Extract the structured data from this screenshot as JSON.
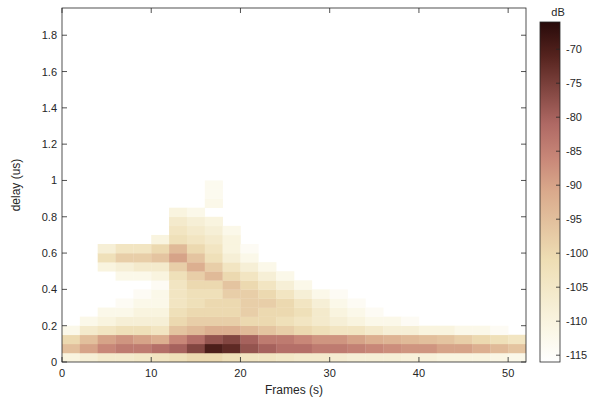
{
  "chart_data": {
    "type": "heatmap",
    "x_label": "Frames (s)",
    "y_label": "delay (us)",
    "xlim": [
      0,
      52
    ],
    "ylim": [
      0,
      1.95
    ],
    "xticks": [
      0,
      10,
      20,
      30,
      40,
      50
    ],
    "yticks": [
      0,
      0.2,
      0.4,
      0.6,
      0.8,
      1,
      1.2,
      1.4,
      1.6,
      1.8
    ],
    "x_edges": [
      0,
      2,
      4,
      6,
      8,
      10,
      12,
      14,
      16,
      18,
      20,
      22,
      24,
      26,
      28,
      30,
      32,
      34,
      36,
      38,
      40,
      42,
      44,
      46,
      48,
      50,
      52
    ],
    "y_edges": [
      0,
      0.05,
      0.1,
      0.15,
      0.2,
      0.25,
      0.3,
      0.35,
      0.4,
      0.45,
      0.5,
      0.55,
      0.6,
      0.65,
      0.7,
      0.75,
      0.8,
      0.85,
      0.9,
      0.95,
      1
    ],
    "z": [
      [
        -110,
        -108,
        -106,
        -106,
        -105,
        -104,
        -102,
        -100,
        -100,
        -102,
        -104,
        -104,
        -105,
        -106,
        -106,
        -107,
        -108,
        -108,
        -108,
        -109,
        -109,
        -110,
        -110,
        -110,
        -111,
        -112
      ],
      [
        -95,
        -90,
        -86,
        -84,
        -84,
        -82,
        -80,
        -76,
        -70,
        -72,
        -78,
        -80,
        -82,
        -82,
        -84,
        -84,
        -85,
        -86,
        -87,
        -88,
        -88,
        -90,
        -90,
        -92,
        -94,
        -96
      ],
      [
        -100,
        -95,
        -90,
        -88,
        -90,
        -92,
        -86,
        -82,
        -78,
        -76,
        -80,
        -84,
        -84,
        -86,
        -88,
        -88,
        -90,
        -92,
        -93,
        -94,
        -95,
        -96,
        -98,
        -100,
        -102,
        -104
      ],
      [
        -112,
        -106,
        -104,
        -102,
        -102,
        -104,
        -96,
        -94,
        -92,
        -92,
        -94,
        -96,
        -98,
        -100,
        -102,
        -104,
        -104,
        -106,
        -108,
        -108,
        -110,
        -110,
        -112,
        -112,
        -114,
        null
      ],
      [
        null,
        -112,
        -110,
        -108,
        -108,
        -108,
        -100,
        -98,
        -98,
        -98,
        -100,
        -100,
        -102,
        -104,
        -106,
        -108,
        -110,
        -112,
        -112,
        -114,
        null,
        null,
        null,
        null,
        null,
        null
      ],
      [
        null,
        null,
        -112,
        -112,
        -110,
        -110,
        -102,
        -100,
        -100,
        -100,
        -98,
        -100,
        -100,
        -102,
        -106,
        -110,
        -112,
        -114,
        null,
        null,
        null,
        null,
        null,
        null,
        null,
        null
      ],
      [
        null,
        null,
        null,
        -114,
        -112,
        -112,
        -104,
        -102,
        -100,
        -100,
        -98,
        -98,
        -100,
        -104,
        -108,
        -112,
        -114,
        null,
        null,
        null,
        null,
        null,
        null,
        null,
        null,
        null
      ],
      [
        null,
        null,
        null,
        null,
        -114,
        -112,
        -104,
        -102,
        -102,
        -98,
        -98,
        -100,
        -104,
        -108,
        -112,
        -114,
        null,
        null,
        null,
        null,
        null,
        null,
        null,
        null,
        null,
        null
      ],
      [
        null,
        null,
        null,
        null,
        null,
        -114,
        -104,
        -100,
        -100,
        -96,
        -100,
        -104,
        -108,
        -112,
        null,
        null,
        null,
        null,
        null,
        null,
        null,
        null,
        null,
        null,
        null,
        null
      ],
      [
        null,
        null,
        null,
        -112,
        -112,
        -110,
        -102,
        -98,
        -94,
        -100,
        -104,
        -108,
        -112,
        null,
        null,
        null,
        null,
        null,
        null,
        null,
        null,
        null,
        null,
        null,
        null,
        null
      ],
      [
        null,
        null,
        -110,
        -108,
        -106,
        -106,
        -98,
        -92,
        -98,
        -104,
        -108,
        -112,
        null,
        null,
        null,
        null,
        null,
        null,
        null,
        null,
        null,
        null,
        null,
        null,
        null,
        null
      ],
      [
        null,
        null,
        -102,
        -98,
        -98,
        -96,
        -90,
        -96,
        -102,
        -108,
        -112,
        null,
        null,
        null,
        null,
        null,
        null,
        null,
        null,
        null,
        null,
        null,
        null,
        null,
        null,
        null
      ],
      [
        null,
        null,
        -108,
        -104,
        -104,
        -100,
        -94,
        -100,
        -104,
        -110,
        -114,
        null,
        null,
        null,
        null,
        null,
        null,
        null,
        null,
        null,
        null,
        null,
        null,
        null,
        null,
        null
      ],
      [
        null,
        null,
        null,
        null,
        null,
        -110,
        -102,
        -104,
        -106,
        -110,
        null,
        null,
        null,
        null,
        null,
        null,
        null,
        null,
        null,
        null,
        null,
        null,
        null,
        null,
        null,
        null
      ],
      [
        null,
        null,
        null,
        null,
        null,
        null,
        -104,
        -106,
        -108,
        -112,
        null,
        null,
        null,
        null,
        null,
        null,
        null,
        null,
        null,
        null,
        null,
        null,
        null,
        null,
        null,
        null
      ],
      [
        null,
        null,
        null,
        null,
        null,
        null,
        -106,
        -108,
        -110,
        null,
        null,
        null,
        null,
        null,
        null,
        null,
        null,
        null,
        null,
        null,
        null,
        null,
        null,
        null,
        null,
        null
      ],
      [
        null,
        null,
        null,
        null,
        null,
        null,
        -110,
        -112,
        null,
        null,
        null,
        null,
        null,
        null,
        null,
        null,
        null,
        null,
        null,
        null,
        null,
        null,
        null,
        null,
        null,
        null
      ],
      [
        null,
        null,
        null,
        null,
        null,
        null,
        null,
        null,
        -112,
        null,
        null,
        null,
        null,
        null,
        null,
        null,
        null,
        null,
        null,
        null,
        null,
        null,
        null,
        null,
        null,
        null
      ],
      [
        null,
        null,
        null,
        null,
        null,
        null,
        null,
        null,
        -113,
        null,
        null,
        null,
        null,
        null,
        null,
        null,
        null,
        null,
        null,
        null,
        null,
        null,
        null,
        null,
        null,
        null
      ],
      [
        null,
        null,
        null,
        null,
        null,
        null,
        null,
        null,
        -113,
        null,
        null,
        null,
        null,
        null,
        null,
        null,
        null,
        null,
        null,
        null,
        null,
        null,
        null,
        null,
        null,
        null
      ]
    ],
    "colorbar": {
      "label": "dB",
      "range": [
        -116,
        -66
      ],
      "ticks": [
        -115,
        -110,
        -105,
        -100,
        -95,
        -90,
        -85,
        -80,
        -75,
        -70
      ]
    }
  }
}
